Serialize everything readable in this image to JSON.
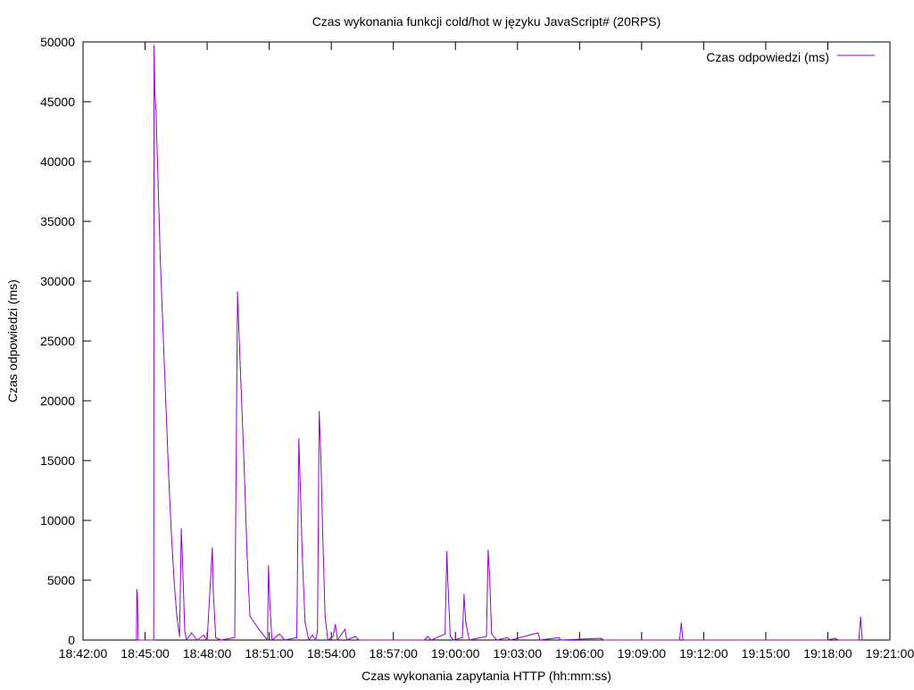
{
  "chart_data": {
    "type": "line",
    "title": "Czas wykonania funkcji cold/hot w języku JavaScript# (20RPS)",
    "xlabel": "Czas wykonania zapytania HTTP (hh:mm:ss)",
    "ylabel": "Czas odpowiedzi (ms)",
    "x_ticks": [
      "18:42:00",
      "18:45:00",
      "18:48:00",
      "18:51:00",
      "18:54:00",
      "18:57:00",
      "19:00:00",
      "19:03:00",
      "19:06:00",
      "19:09:00",
      "19:12:00",
      "19:15:00",
      "19:18:00",
      "19:21:00"
    ],
    "y_ticks": [
      0,
      5000,
      10000,
      15000,
      20000,
      25000,
      30000,
      35000,
      40000,
      45000,
      50000
    ],
    "xlim": [
      "18:42:00",
      "19:21:00"
    ],
    "ylim": [
      0,
      50000
    ],
    "legend_position": "top-right",
    "grid": false,
    "series": [
      {
        "name": "Czas odpowiedzi (ms)",
        "color": "#9400d3",
        "points": [
          [
            "18:44:35",
            0
          ],
          [
            "18:44:36",
            4200
          ],
          [
            "18:44:38",
            3800
          ],
          [
            "18:44:40",
            0
          ],
          [
            "18:45:25",
            0
          ],
          [
            "18:45:26",
            49700
          ],
          [
            "18:45:28",
            46000
          ],
          [
            "18:45:32",
            44000
          ],
          [
            "18:45:38",
            38000
          ],
          [
            "18:45:44",
            32000
          ],
          [
            "18:45:52",
            26000
          ],
          [
            "18:46:00",
            20000
          ],
          [
            "18:46:08",
            14000
          ],
          [
            "18:46:16",
            9000
          ],
          [
            "18:46:24",
            5000
          ],
          [
            "18:46:32",
            2000
          ],
          [
            "18:46:40",
            300
          ],
          [
            "18:46:45",
            9300
          ],
          [
            "18:46:48",
            7000
          ],
          [
            "18:46:55",
            800
          ],
          [
            "18:47:00",
            0
          ],
          [
            "18:47:15",
            600
          ],
          [
            "18:47:30",
            0
          ],
          [
            "18:47:50",
            400
          ],
          [
            "18:48:00",
            0
          ],
          [
            "18:48:15",
            7700
          ],
          [
            "18:48:18",
            4000
          ],
          [
            "18:48:25",
            200
          ],
          [
            "18:48:40",
            0
          ],
          [
            "18:49:20",
            200
          ],
          [
            "18:49:28",
            29100
          ],
          [
            "18:49:32",
            26000
          ],
          [
            "18:49:40",
            20000
          ],
          [
            "18:49:48",
            14000
          ],
          [
            "18:49:56",
            7000
          ],
          [
            "18:50:04",
            2000
          ],
          [
            "18:50:30",
            900
          ],
          [
            "18:50:55",
            0
          ],
          [
            "18:50:58",
            6200
          ],
          [
            "18:51:02",
            3000
          ],
          [
            "18:51:08",
            0
          ],
          [
            "18:51:30",
            500
          ],
          [
            "18:51:45",
            0
          ],
          [
            "18:52:20",
            200
          ],
          [
            "18:52:26",
            16800
          ],
          [
            "18:52:30",
            13000
          ],
          [
            "18:52:36",
            7000
          ],
          [
            "18:52:44",
            1500
          ],
          [
            "18:52:55",
            0
          ],
          [
            "18:53:05",
            400
          ],
          [
            "18:53:15",
            0
          ],
          [
            "18:53:20",
            700
          ],
          [
            "18:53:25",
            19100
          ],
          [
            "18:53:29",
            16000
          ],
          [
            "18:53:35",
            9000
          ],
          [
            "18:53:42",
            2000
          ],
          [
            "18:53:50",
            0
          ],
          [
            "18:54:05",
            300
          ],
          [
            "18:54:12",
            1300
          ],
          [
            "18:54:18",
            0
          ],
          [
            "18:54:40",
            900
          ],
          [
            "18:54:45",
            0
          ],
          [
            "18:55:10",
            300
          ],
          [
            "18:55:20",
            0
          ],
          [
            "18:58:30",
            0
          ],
          [
            "18:58:40",
            300
          ],
          [
            "18:58:50",
            0
          ],
          [
            "18:59:30",
            500
          ],
          [
            "18:59:35",
            7400
          ],
          [
            "18:59:38",
            5000
          ],
          [
            "18:59:45",
            300
          ],
          [
            "18:59:55",
            0
          ],
          [
            "19:00:20",
            200
          ],
          [
            "19:00:25",
            3800
          ],
          [
            "19:00:30",
            1500
          ],
          [
            "19:00:40",
            0
          ],
          [
            "19:01:30",
            300
          ],
          [
            "19:01:35",
            7500
          ],
          [
            "19:01:39",
            5500
          ],
          [
            "19:01:45",
            500
          ],
          [
            "19:02:00",
            0
          ],
          [
            "19:02:30",
            200
          ],
          [
            "19:02:40",
            0
          ],
          [
            "19:04:00",
            600
          ],
          [
            "19:04:05",
            0
          ],
          [
            "19:05:00",
            200
          ],
          [
            "19:05:05",
            0
          ],
          [
            "19:07:00",
            150
          ],
          [
            "19:07:10",
            0
          ],
          [
            "19:10:50",
            0
          ],
          [
            "19:10:55",
            1400
          ],
          [
            "19:11:00",
            0
          ],
          [
            "19:18:00",
            0
          ],
          [
            "19:18:20",
            150
          ],
          [
            "19:18:30",
            0
          ],
          [
            "19:19:30",
            0
          ],
          [
            "19:19:35",
            1900
          ],
          [
            "19:19:40",
            0
          ]
        ]
      }
    ]
  }
}
